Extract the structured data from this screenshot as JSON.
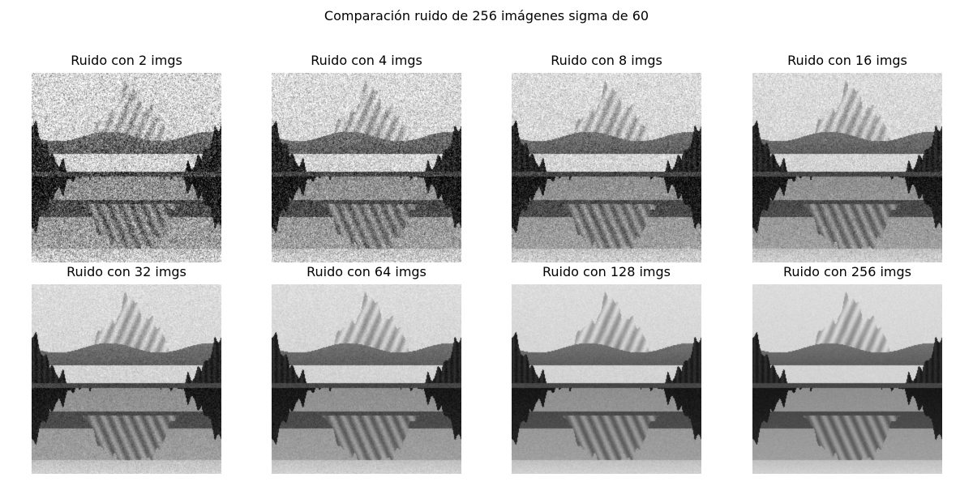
{
  "figure": {
    "title": "Comparación ruido de 256 imágenes sigma de 60"
  },
  "panels": [
    {
      "title": "Ruido con 2 imgs",
      "n_images": 2
    },
    {
      "title": "Ruido con 4 imgs",
      "n_images": 4
    },
    {
      "title": "Ruido con 8 imgs",
      "n_images": 8
    },
    {
      "title": "Ruido con 16 imgs",
      "n_images": 16
    },
    {
      "title": "Ruido con 32 imgs",
      "n_images": 32
    },
    {
      "title": "Ruido con 64 imgs",
      "n_images": 64
    },
    {
      "title": "Ruido con 128 imgs",
      "n_images": 128
    },
    {
      "title": "Ruido con 256 imgs",
      "n_images": 256
    }
  ],
  "image_description_colors": {
    "sky": "#d8d8d8",
    "mountain_light": "#e6e6e6",
    "mountain_dark": "#7a7a7a",
    "forest": "#1e1e1e",
    "water_top": "#262626",
    "water_bottom": "#cfcfcf"
  }
}
